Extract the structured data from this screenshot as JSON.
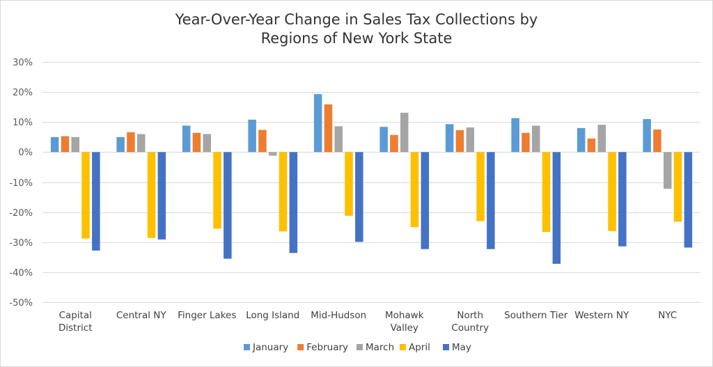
{
  "chart_data": {
    "type": "bar",
    "title_lines": [
      "Year-Over-Year Change in Sales Tax Collections by",
      "Regions of New York State"
    ],
    "xlabel": "",
    "ylabel": "",
    "ylim": [
      -50,
      30
    ],
    "y_ticks": [
      30,
      20,
      10,
      0,
      -10,
      -20,
      -30,
      -40,
      -50
    ],
    "y_tick_labels": [
      "30%",
      "20%",
      "10%",
      "0%",
      "-10%",
      "-20%",
      "-30%",
      "-40%",
      "-50%"
    ],
    "grid": true,
    "legend_position": "bottom",
    "categories": [
      [
        "Capital",
        "District"
      ],
      [
        "Central NY"
      ],
      [
        "Finger Lakes"
      ],
      [
        "Long Island"
      ],
      [
        "Mid-Hudson"
      ],
      [
        "Mohawk",
        "Valley"
      ],
      [
        "North",
        "Country"
      ],
      [
        "Southern Tier"
      ],
      [
        "Western NY"
      ],
      [
        "NYC"
      ]
    ],
    "series": [
      {
        "name": "January",
        "color": "#5b9bd5",
        "values": [
          5.0,
          5.0,
          8.8,
          10.8,
          19.3,
          8.4,
          9.3,
          11.3,
          8.0,
          11.0
        ]
      },
      {
        "name": "February",
        "color": "#ed7d31",
        "values": [
          5.3,
          6.6,
          6.4,
          7.4,
          15.9,
          5.7,
          7.3,
          6.4,
          4.5,
          7.5
        ]
      },
      {
        "name": "March",
        "color": "#a5a5a5",
        "values": [
          5.0,
          6.0,
          6.0,
          -1.2,
          8.6,
          13.1,
          8.2,
          8.8,
          9.1,
          -12.2
        ]
      },
      {
        "name": "April",
        "color": "#ffc000",
        "values": [
          -28.8,
          -28.6,
          -25.5,
          -26.4,
          -21.2,
          -25.0,
          -23.0,
          -26.6,
          -26.3,
          -23.2
        ]
      },
      {
        "name": "May",
        "color": "#4472c4",
        "values": [
          -32.8,
          -29.1,
          -35.5,
          -33.6,
          -29.9,
          -32.3,
          -32.3,
          -37.2,
          -31.4,
          -31.8
        ]
      }
    ]
  }
}
